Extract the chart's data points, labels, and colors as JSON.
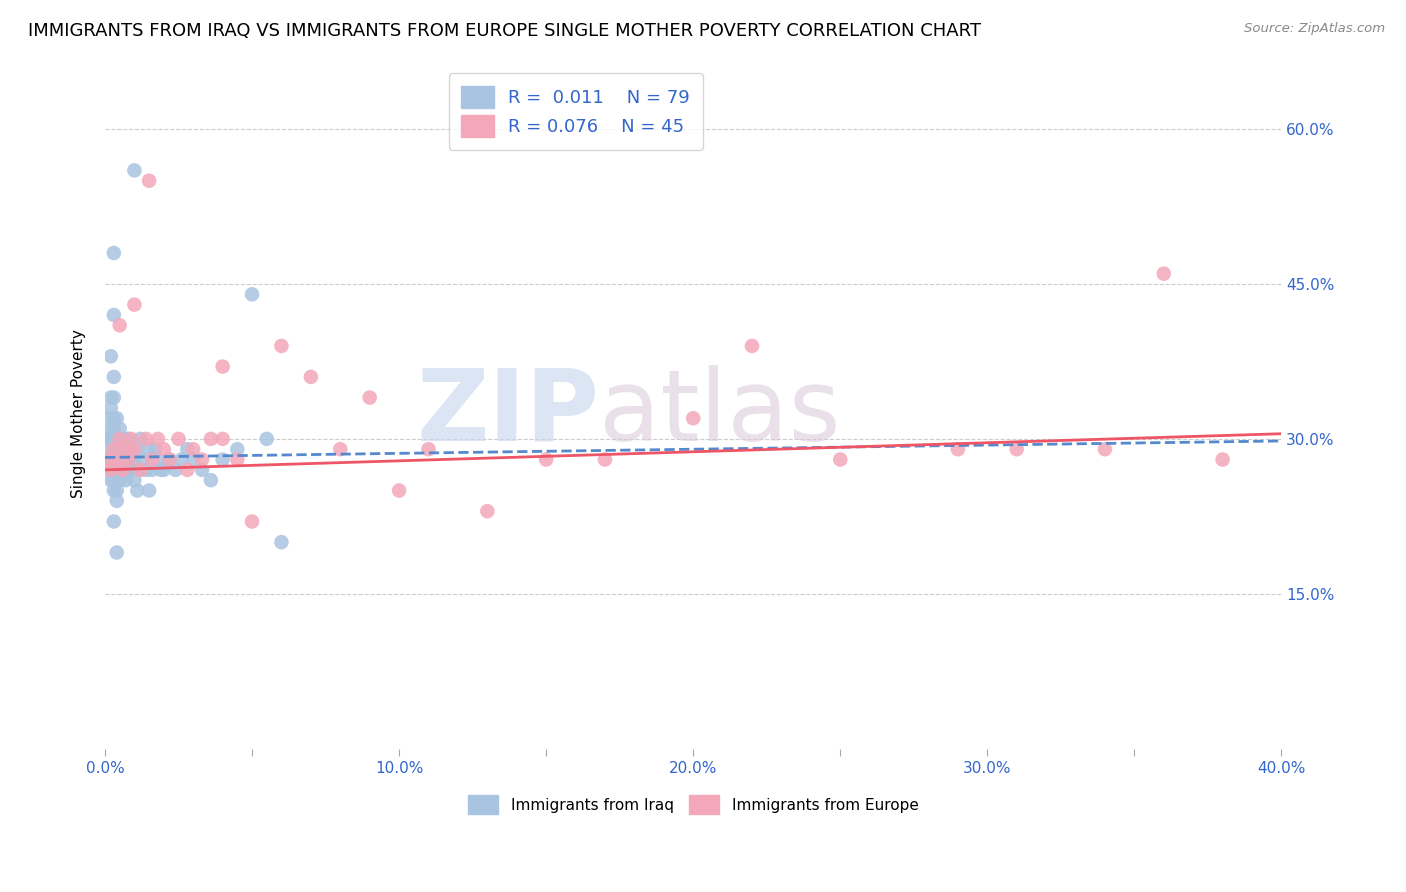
{
  "title": "IMMIGRANTS FROM IRAQ VS IMMIGRANTS FROM EUROPE SINGLE MOTHER POVERTY CORRELATION CHART",
  "source": "Source: ZipAtlas.com",
  "ylabel": "Single Mother Poverty",
  "xlabel_iraq": "Immigrants from Iraq",
  "xlabel_europe": "Immigrants from Europe",
  "watermark_zip": "ZIP",
  "watermark_atlas": "atlas",
  "xlim": [
    0.0,
    0.4
  ],
  "ylim": [
    0.0,
    0.65
  ],
  "yticks": [
    0.15,
    0.3,
    0.45,
    0.6
  ],
  "ytick_labels": [
    "15.0%",
    "30.0%",
    "45.0%",
    "60.0%"
  ],
  "xticks": [
    0.0,
    0.05,
    0.1,
    0.15,
    0.2,
    0.25,
    0.3,
    0.35,
    0.4
  ],
  "xtick_labels": [
    "0.0%",
    "",
    "10.0%",
    "",
    "20.0%",
    "",
    "30.0%",
    "",
    "40.0%"
  ],
  "color_iraq": "#a8c4e0",
  "color_europe": "#f4a7b9",
  "color_text": "#3366cc",
  "color_trendline_iraq": "#5588cc",
  "color_trendline_europe": "#ee5566",
  "title_fontsize": 13,
  "axis_label_fontsize": 11,
  "tick_fontsize": 11,
  "legend_fontsize": 13,
  "iraq_x": [
    0.001,
    0.001,
    0.001,
    0.002,
    0.002,
    0.002,
    0.002,
    0.002,
    0.002,
    0.002,
    0.003,
    0.003,
    0.003,
    0.003,
    0.003,
    0.003,
    0.003,
    0.003,
    0.003,
    0.003,
    0.004,
    0.004,
    0.004,
    0.004,
    0.004,
    0.004,
    0.004,
    0.005,
    0.005,
    0.005,
    0.005,
    0.005,
    0.005,
    0.006,
    0.006,
    0.006,
    0.007,
    0.007,
    0.007,
    0.007,
    0.008,
    0.008,
    0.008,
    0.009,
    0.009,
    0.01,
    0.01,
    0.011,
    0.011,
    0.012,
    0.012,
    0.013,
    0.014,
    0.015,
    0.015,
    0.016,
    0.017,
    0.018,
    0.019,
    0.02,
    0.022,
    0.024,
    0.026,
    0.028,
    0.03,
    0.033,
    0.036,
    0.04,
    0.045,
    0.05,
    0.055,
    0.06,
    0.01,
    0.003,
    0.002,
    0.002,
    0.003,
    0.003,
    0.004
  ],
  "iraq_y": [
    0.28,
    0.3,
    0.32,
    0.26,
    0.27,
    0.28,
    0.29,
    0.3,
    0.31,
    0.33,
    0.25,
    0.26,
    0.27,
    0.28,
    0.29,
    0.3,
    0.31,
    0.32,
    0.34,
    0.36,
    0.24,
    0.25,
    0.27,
    0.28,
    0.29,
    0.3,
    0.32,
    0.26,
    0.27,
    0.28,
    0.29,
    0.3,
    0.31,
    0.27,
    0.28,
    0.29,
    0.26,
    0.27,
    0.29,
    0.3,
    0.27,
    0.28,
    0.3,
    0.27,
    0.29,
    0.26,
    0.28,
    0.25,
    0.29,
    0.27,
    0.3,
    0.28,
    0.27,
    0.25,
    0.29,
    0.27,
    0.29,
    0.28,
    0.27,
    0.27,
    0.28,
    0.27,
    0.28,
    0.29,
    0.28,
    0.27,
    0.26,
    0.28,
    0.29,
    0.44,
    0.3,
    0.2,
    0.56,
    0.48,
    0.38,
    0.34,
    0.42,
    0.22,
    0.19
  ],
  "europe_x": [
    0.001,
    0.002,
    0.003,
    0.004,
    0.005,
    0.006,
    0.007,
    0.008,
    0.009,
    0.01,
    0.012,
    0.014,
    0.016,
    0.018,
    0.02,
    0.022,
    0.025,
    0.028,
    0.03,
    0.033,
    0.036,
    0.04,
    0.045,
    0.05,
    0.06,
    0.07,
    0.08,
    0.09,
    0.1,
    0.11,
    0.13,
    0.15,
    0.17,
    0.2,
    0.22,
    0.25,
    0.29,
    0.31,
    0.34,
    0.36,
    0.38,
    0.005,
    0.01,
    0.015,
    0.04
  ],
  "europe_y": [
    0.28,
    0.27,
    0.29,
    0.28,
    0.3,
    0.27,
    0.29,
    0.28,
    0.3,
    0.29,
    0.27,
    0.3,
    0.28,
    0.3,
    0.29,
    0.28,
    0.3,
    0.27,
    0.29,
    0.28,
    0.3,
    0.3,
    0.28,
    0.22,
    0.39,
    0.36,
    0.29,
    0.34,
    0.25,
    0.29,
    0.23,
    0.28,
    0.28,
    0.32,
    0.39,
    0.28,
    0.29,
    0.29,
    0.29,
    0.46,
    0.28,
    0.41,
    0.43,
    0.55,
    0.37
  ]
}
